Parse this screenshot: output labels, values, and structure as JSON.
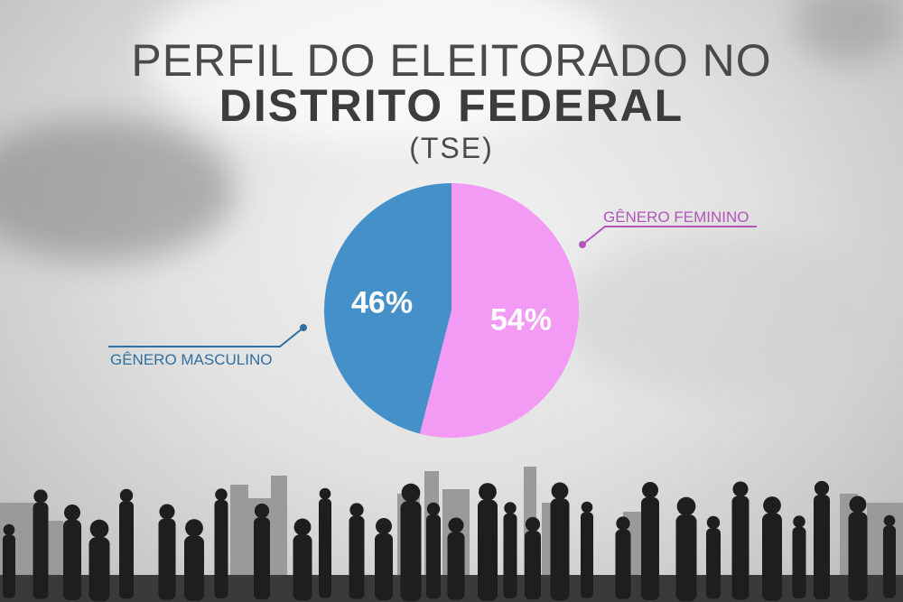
{
  "title": {
    "line1": "PERFIL DO ELEITORADO NO",
    "line2": "DISTRITO FEDERAL",
    "source": "(TSE)"
  },
  "chart_data": {
    "type": "pie",
    "start": "12 o'clock, counter-clockwise",
    "slices": [
      {
        "label": "GÊNERO MASCULINO",
        "value": 46,
        "value_label": "46%",
        "color": "#4590c9"
      },
      {
        "label": "GÊNERO FEMININO",
        "value": 54,
        "value_label": "54%",
        "color": "#f29af4"
      }
    ],
    "legend": "callout labels beside slices",
    "label_colors": {
      "masculino": "#2f6f9f",
      "feminino": "#b255b8"
    }
  },
  "background": "crowd-silhouettes-over-city-skyline"
}
